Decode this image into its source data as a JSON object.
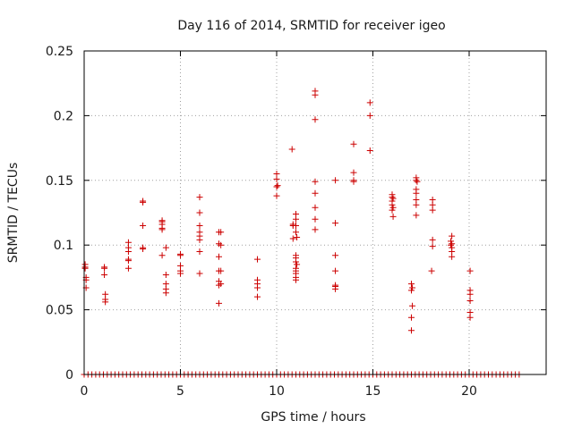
{
  "chart_data": {
    "type": "scatter",
    "title": "Day 116 of 2014, SRMTID for receiver igeo",
    "xlabel": "GPS time / hours",
    "ylabel": "SRMTID / TECUs",
    "xlim": [
      0,
      24
    ],
    "ylim": [
      0,
      0.25
    ],
    "xticks": [
      0,
      5,
      10,
      15,
      20
    ],
    "xtick_labels": [
      "0",
      "5",
      "10",
      "15",
      "20"
    ],
    "yticks": [
      0,
      0.05,
      0.1,
      0.15,
      0.2,
      0.25
    ],
    "ytick_labels": [
      "0",
      "0.05",
      "0.1",
      "0.15",
      "0.2",
      "0.25"
    ],
    "grid": true,
    "marker": "plus",
    "color": "#cc0000",
    "series": [
      {
        "name": "SRMTID",
        "points": [
          [
            0.05,
            0.085
          ],
          [
            0.05,
            0.083
          ],
          [
            0.05,
            0.082
          ],
          [
            0.1,
            0.075
          ],
          [
            0.1,
            0.073
          ],
          [
            0.1,
            0.067
          ],
          [
            1.05,
            0.083
          ],
          [
            1.05,
            0.082
          ],
          [
            1.05,
            0.077
          ],
          [
            1.1,
            0.062
          ],
          [
            1.1,
            0.058
          ],
          [
            1.1,
            0.056
          ],
          [
            2.3,
            0.102
          ],
          [
            2.3,
            0.098
          ],
          [
            2.3,
            0.095
          ],
          [
            2.3,
            0.089
          ],
          [
            2.3,
            0.088
          ],
          [
            2.3,
            0.082
          ],
          [
            3.05,
            0.134
          ],
          [
            3.05,
            0.133
          ],
          [
            3.05,
            0.115
          ],
          [
            3.05,
            0.098
          ],
          [
            3.05,
            0.097
          ],
          [
            4.05,
            0.119
          ],
          [
            4.05,
            0.118
          ],
          [
            4.05,
            0.116
          ],
          [
            4.05,
            0.113
          ],
          [
            4.05,
            0.112
          ],
          [
            4.05,
            0.092
          ],
          [
            4.25,
            0.098
          ],
          [
            4.25,
            0.077
          ],
          [
            4.25,
            0.07
          ],
          [
            4.25,
            0.066
          ],
          [
            4.25,
            0.063
          ],
          [
            5.0,
            0.093
          ],
          [
            5.0,
            0.092
          ],
          [
            5.0,
            0.084
          ],
          [
            5.0,
            0.08
          ],
          [
            5.0,
            0.078
          ],
          [
            6.0,
            0.137
          ],
          [
            6.0,
            0.125
          ],
          [
            6.0,
            0.115
          ],
          [
            6.0,
            0.11
          ],
          [
            6.0,
            0.107
          ],
          [
            6.0,
            0.104
          ],
          [
            6.0,
            0.095
          ],
          [
            6.0,
            0.078
          ],
          [
            7.0,
            0.11
          ],
          [
            7.1,
            0.11
          ],
          [
            7.0,
            0.101
          ],
          [
            7.1,
            0.1
          ],
          [
            7.0,
            0.091
          ],
          [
            7.1,
            0.08
          ],
          [
            7.0,
            0.08
          ],
          [
            7.0,
            0.072
          ],
          [
            7.1,
            0.07
          ],
          [
            7.0,
            0.069
          ],
          [
            7.0,
            0.055
          ],
          [
            9.0,
            0.089
          ],
          [
            9.0,
            0.073
          ],
          [
            9.0,
            0.07
          ],
          [
            9.0,
            0.067
          ],
          [
            9.0,
            0.06
          ],
          [
            10.0,
            0.155
          ],
          [
            10.0,
            0.151
          ],
          [
            10.05,
            0.146
          ],
          [
            10.0,
            0.145
          ],
          [
            10.0,
            0.138
          ],
          [
            10.8,
            0.174
          ],
          [
            10.85,
            0.116
          ],
          [
            10.85,
            0.115
          ],
          [
            10.85,
            0.105
          ],
          [
            11.0,
            0.124
          ],
          [
            11.0,
            0.12
          ],
          [
            11.0,
            0.115
          ],
          [
            11.0,
            0.11
          ],
          [
            11.05,
            0.106
          ],
          [
            11.0,
            0.092
          ],
          [
            11.0,
            0.09
          ],
          [
            11.0,
            0.087
          ],
          [
            11.05,
            0.085
          ],
          [
            11.0,
            0.082
          ],
          [
            11.0,
            0.08
          ],
          [
            11.0,
            0.078
          ],
          [
            11.0,
            0.075
          ],
          [
            11.0,
            0.073
          ],
          [
            12.0,
            0.219
          ],
          [
            12.0,
            0.216
          ],
          [
            12.0,
            0.197
          ],
          [
            12.0,
            0.149
          ],
          [
            12.0,
            0.14
          ],
          [
            12.0,
            0.129
          ],
          [
            12.0,
            0.12
          ],
          [
            12.0,
            0.112
          ],
          [
            13.05,
            0.15
          ],
          [
            13.05,
            0.117
          ],
          [
            13.05,
            0.092
          ],
          [
            13.05,
            0.08
          ],
          [
            13.05,
            0.069
          ],
          [
            13.05,
            0.068
          ],
          [
            13.05,
            0.066
          ],
          [
            14.0,
            0.178
          ],
          [
            14.0,
            0.156
          ],
          [
            14.0,
            0.15
          ],
          [
            14.0,
            0.149
          ],
          [
            14.85,
            0.21
          ],
          [
            14.85,
            0.2
          ],
          [
            14.85,
            0.173
          ],
          [
            16.0,
            0.139
          ],
          [
            16.0,
            0.137
          ],
          [
            16.05,
            0.136
          ],
          [
            16.0,
            0.134
          ],
          [
            16.0,
            0.131
          ],
          [
            16.05,
            0.129
          ],
          [
            16.0,
            0.127
          ],
          [
            16.05,
            0.122
          ],
          [
            17.0,
            0.07
          ],
          [
            17.05,
            0.067
          ],
          [
            17.0,
            0.065
          ],
          [
            17.05,
            0.053
          ],
          [
            17.0,
            0.044
          ],
          [
            17.0,
            0.034
          ],
          [
            17.25,
            0.152
          ],
          [
            17.25,
            0.15
          ],
          [
            17.3,
            0.149
          ],
          [
            17.25,
            0.143
          ],
          [
            17.25,
            0.14
          ],
          [
            17.25,
            0.135
          ],
          [
            17.25,
            0.131
          ],
          [
            17.25,
            0.123
          ],
          [
            18.1,
            0.135
          ],
          [
            18.1,
            0.131
          ],
          [
            18.1,
            0.127
          ],
          [
            18.1,
            0.104
          ],
          [
            18.1,
            0.099
          ],
          [
            18.05,
            0.08
          ],
          [
            19.1,
            0.107
          ],
          [
            19.05,
            0.103
          ],
          [
            19.1,
            0.101
          ],
          [
            19.05,
            0.1
          ],
          [
            19.1,
            0.098
          ],
          [
            19.1,
            0.095
          ],
          [
            19.1,
            0.091
          ],
          [
            20.05,
            0.08
          ],
          [
            20.05,
            0.065
          ],
          [
            20.05,
            0.062
          ],
          [
            20.05,
            0.057
          ],
          [
            20.05,
            0.048
          ],
          [
            20.05,
            0.044
          ],
          [
            0,
            0
          ],
          [
            0.2,
            0
          ],
          [
            0.4,
            0
          ],
          [
            0.6,
            0
          ],
          [
            0.8,
            0
          ],
          [
            1.0,
            0
          ],
          [
            1.2,
            0
          ],
          [
            1.4,
            0
          ],
          [
            1.6,
            0
          ],
          [
            1.8,
            0
          ],
          [
            2.0,
            0
          ],
          [
            2.2,
            0
          ],
          [
            2.4,
            0
          ],
          [
            2.6,
            0
          ],
          [
            2.8,
            0
          ],
          [
            3.0,
            0
          ],
          [
            3.2,
            0
          ],
          [
            3.4,
            0
          ],
          [
            3.6,
            0
          ],
          [
            3.8,
            0
          ],
          [
            4.0,
            0
          ],
          [
            4.2,
            0
          ],
          [
            4.4,
            0
          ],
          [
            4.6,
            0
          ],
          [
            4.8,
            0
          ],
          [
            5.0,
            0
          ],
          [
            5.2,
            0
          ],
          [
            5.4,
            0
          ],
          [
            5.6,
            0
          ],
          [
            5.8,
            0
          ],
          [
            6.0,
            0
          ],
          [
            6.2,
            0
          ],
          [
            6.4,
            0
          ],
          [
            6.6,
            0
          ],
          [
            6.8,
            0
          ],
          [
            7.0,
            0
          ],
          [
            7.2,
            0
          ],
          [
            7.4,
            0
          ],
          [
            7.6,
            0
          ],
          [
            7.8,
            0
          ],
          [
            8.0,
            0
          ],
          [
            8.2,
            0
          ],
          [
            8.4,
            0
          ],
          [
            8.6,
            0
          ],
          [
            8.8,
            0
          ],
          [
            9.0,
            0
          ],
          [
            9.2,
            0
          ],
          [
            9.4,
            0
          ],
          [
            9.6,
            0
          ],
          [
            9.8,
            0
          ],
          [
            10.0,
            0
          ],
          [
            10.2,
            0
          ],
          [
            10.4,
            0
          ],
          [
            10.6,
            0
          ],
          [
            10.8,
            0
          ],
          [
            11.0,
            0
          ],
          [
            11.2,
            0
          ],
          [
            11.4,
            0
          ],
          [
            11.6,
            0
          ],
          [
            11.8,
            0
          ],
          [
            12.0,
            0
          ],
          [
            12.2,
            0
          ],
          [
            12.4,
            0
          ],
          [
            12.6,
            0
          ],
          [
            12.8,
            0
          ],
          [
            13.0,
            0
          ],
          [
            13.2,
            0
          ],
          [
            13.4,
            0
          ],
          [
            13.6,
            0
          ],
          [
            13.8,
            0
          ],
          [
            14.0,
            0
          ],
          [
            14.2,
            0
          ],
          [
            14.4,
            0
          ],
          [
            14.6,
            0
          ],
          [
            14.8,
            0
          ],
          [
            15.0,
            0
          ],
          [
            15.2,
            0
          ],
          [
            15.4,
            0
          ],
          [
            15.6,
            0
          ],
          [
            15.8,
            0
          ],
          [
            16.0,
            0
          ],
          [
            16.2,
            0
          ],
          [
            16.4,
            0
          ],
          [
            16.6,
            0
          ],
          [
            16.8,
            0
          ],
          [
            17.0,
            0
          ],
          [
            17.2,
            0
          ],
          [
            17.4,
            0
          ],
          [
            17.6,
            0
          ],
          [
            17.8,
            0
          ],
          [
            18.0,
            0
          ],
          [
            18.2,
            0
          ],
          [
            18.4,
            0
          ],
          [
            18.6,
            0
          ],
          [
            18.8,
            0
          ],
          [
            19.0,
            0
          ],
          [
            19.2,
            0
          ],
          [
            19.4,
            0
          ],
          [
            19.6,
            0
          ],
          [
            19.8,
            0
          ],
          [
            20.0,
            0
          ],
          [
            20.2,
            0
          ],
          [
            20.4,
            0
          ],
          [
            20.6,
            0
          ],
          [
            20.8,
            0
          ],
          [
            21.0,
            0
          ],
          [
            21.2,
            0
          ],
          [
            21.4,
            0
          ],
          [
            21.6,
            0
          ],
          [
            21.8,
            0
          ],
          [
            22.0,
            0
          ],
          [
            22.2,
            0
          ],
          [
            22.4,
            0
          ],
          [
            22.6,
            0
          ]
        ]
      }
    ]
  }
}
